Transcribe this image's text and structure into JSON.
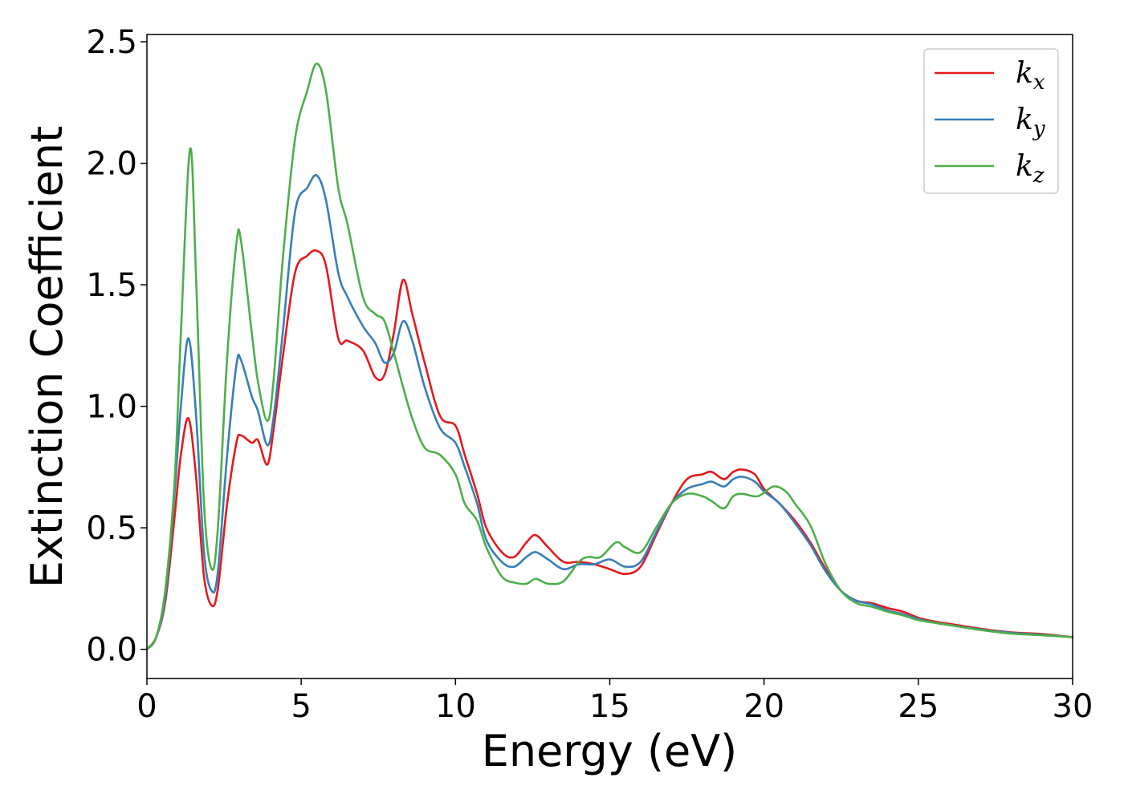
{
  "chart_data": {
    "type": "line",
    "title": "",
    "xlabel": "Energy (eV)",
    "ylabel": "Extinction Coefficient",
    "xlim": [
      0,
      30
    ],
    "ylim": [
      -0.12,
      2.53
    ],
    "xticks": [
      0,
      5,
      10,
      15,
      20,
      25,
      30
    ],
    "xtick_labels": [
      "0",
      "5",
      "10",
      "15",
      "20",
      "25",
      "30"
    ],
    "yticks": [
      0.0,
      0.5,
      1.0,
      1.5,
      2.0,
      2.5
    ],
    "ytick_labels": [
      "0.0",
      "0.5",
      "1.0",
      "1.5",
      "2.0",
      "2.5"
    ],
    "grid": false,
    "legend_position": "top-right",
    "series": [
      {
        "name": "k_x",
        "name_base": "k",
        "name_sub": "x",
        "color": "#e41a1c",
        "points": [
          [
            0,
            0
          ],
          [
            0.3,
            0.05
          ],
          [
            0.6,
            0.2
          ],
          [
            0.9,
            0.55
          ],
          [
            1.1,
            0.8
          ],
          [
            1.35,
            0.95
          ],
          [
            1.6,
            0.7
          ],
          [
            1.85,
            0.3
          ],
          [
            2.1,
            0.18
          ],
          [
            2.3,
            0.25
          ],
          [
            2.6,
            0.6
          ],
          [
            2.9,
            0.85
          ],
          [
            3.05,
            0.88
          ],
          [
            3.4,
            0.85
          ],
          [
            3.6,
            0.86
          ],
          [
            3.9,
            0.76
          ],
          [
            4.1,
            0.9
          ],
          [
            4.4,
            1.2
          ],
          [
            4.8,
            1.55
          ],
          [
            5.2,
            1.62
          ],
          [
            5.5,
            1.64
          ],
          [
            5.8,
            1.58
          ],
          [
            6.2,
            1.28
          ],
          [
            6.5,
            1.27
          ],
          [
            7.0,
            1.23
          ],
          [
            7.4,
            1.12
          ],
          [
            7.7,
            1.13
          ],
          [
            8.0,
            1.3
          ],
          [
            8.3,
            1.52
          ],
          [
            8.6,
            1.38
          ],
          [
            9.0,
            1.18
          ],
          [
            9.5,
            0.96
          ],
          [
            10.0,
            0.92
          ],
          [
            10.3,
            0.8
          ],
          [
            10.7,
            0.64
          ],
          [
            11.0,
            0.5
          ],
          [
            11.5,
            0.4
          ],
          [
            11.9,
            0.38
          ],
          [
            12.3,
            0.44
          ],
          [
            12.6,
            0.47
          ],
          [
            13.0,
            0.42
          ],
          [
            13.5,
            0.36
          ],
          [
            14.0,
            0.36
          ],
          [
            14.5,
            0.35
          ],
          [
            15.0,
            0.33
          ],
          [
            15.5,
            0.31
          ],
          [
            16.0,
            0.34
          ],
          [
            16.5,
            0.47
          ],
          [
            17.0,
            0.6
          ],
          [
            17.5,
            0.7
          ],
          [
            18.0,
            0.72
          ],
          [
            18.3,
            0.73
          ],
          [
            18.7,
            0.7
          ],
          [
            19.0,
            0.73
          ],
          [
            19.3,
            0.74
          ],
          [
            19.7,
            0.72
          ],
          [
            20.0,
            0.66
          ],
          [
            20.5,
            0.6
          ],
          [
            21.0,
            0.53
          ],
          [
            21.5,
            0.44
          ],
          [
            22.0,
            0.33
          ],
          [
            22.5,
            0.24
          ],
          [
            23.0,
            0.2
          ],
          [
            23.5,
            0.19
          ],
          [
            24.0,
            0.17
          ],
          [
            24.5,
            0.155
          ],
          [
            25.0,
            0.13
          ],
          [
            25.5,
            0.115
          ],
          [
            26.0,
            0.105
          ],
          [
            27.0,
            0.085
          ],
          [
            28.0,
            0.07
          ],
          [
            29.0,
            0.063
          ],
          [
            30.0,
            0.05
          ]
        ]
      },
      {
        "name": "k_y",
        "name_base": "k",
        "name_sub": "y",
        "color": "#377eb8",
        "points": [
          [
            0,
            0
          ],
          [
            0.3,
            0.05
          ],
          [
            0.6,
            0.22
          ],
          [
            0.9,
            0.65
          ],
          [
            1.1,
            1.0
          ],
          [
            1.35,
            1.28
          ],
          [
            1.6,
            0.95
          ],
          [
            1.85,
            0.4
          ],
          [
            2.1,
            0.24
          ],
          [
            2.3,
            0.32
          ],
          [
            2.6,
            0.8
          ],
          [
            2.9,
            1.17
          ],
          [
            3.05,
            1.19
          ],
          [
            3.4,
            1.04
          ],
          [
            3.6,
            0.98
          ],
          [
            3.9,
            0.84
          ],
          [
            4.1,
            0.95
          ],
          [
            4.4,
            1.3
          ],
          [
            4.8,
            1.8
          ],
          [
            5.2,
            1.9
          ],
          [
            5.5,
            1.95
          ],
          [
            5.8,
            1.85
          ],
          [
            6.2,
            1.55
          ],
          [
            6.5,
            1.45
          ],
          [
            7.0,
            1.33
          ],
          [
            7.4,
            1.26
          ],
          [
            7.7,
            1.18
          ],
          [
            8.0,
            1.22
          ],
          [
            8.3,
            1.35
          ],
          [
            8.6,
            1.27
          ],
          [
            9.0,
            1.08
          ],
          [
            9.5,
            0.91
          ],
          [
            10.0,
            0.85
          ],
          [
            10.3,
            0.75
          ],
          [
            10.7,
            0.6
          ],
          [
            11.0,
            0.45
          ],
          [
            11.5,
            0.36
          ],
          [
            11.9,
            0.34
          ],
          [
            12.3,
            0.38
          ],
          [
            12.6,
            0.4
          ],
          [
            13.0,
            0.37
          ],
          [
            13.5,
            0.33
          ],
          [
            14.0,
            0.35
          ],
          [
            14.5,
            0.35
          ],
          [
            15.0,
            0.37
          ],
          [
            15.5,
            0.34
          ],
          [
            16.0,
            0.36
          ],
          [
            16.5,
            0.48
          ],
          [
            17.0,
            0.6
          ],
          [
            17.5,
            0.66
          ],
          [
            18.0,
            0.68
          ],
          [
            18.3,
            0.69
          ],
          [
            18.7,
            0.67
          ],
          [
            19.0,
            0.7
          ],
          [
            19.3,
            0.71
          ],
          [
            19.7,
            0.69
          ],
          [
            20.0,
            0.65
          ],
          [
            20.5,
            0.6
          ],
          [
            21.0,
            0.52
          ],
          [
            21.5,
            0.43
          ],
          [
            22.0,
            0.32
          ],
          [
            22.5,
            0.24
          ],
          [
            23.0,
            0.2
          ],
          [
            23.5,
            0.185
          ],
          [
            24.0,
            0.16
          ],
          [
            24.5,
            0.145
          ],
          [
            25.0,
            0.125
          ],
          [
            25.5,
            0.11
          ],
          [
            26.0,
            0.1
          ],
          [
            27.0,
            0.082
          ],
          [
            28.0,
            0.068
          ],
          [
            29.0,
            0.06
          ],
          [
            30.0,
            0.05
          ]
        ]
      },
      {
        "name": "k_z",
        "name_base": "k",
        "name_sub": "z",
        "color": "#4daf4a",
        "points": [
          [
            0,
            0
          ],
          [
            0.3,
            0.05
          ],
          [
            0.6,
            0.25
          ],
          [
            0.9,
            0.7
          ],
          [
            1.1,
            1.3
          ],
          [
            1.4,
            2.06
          ],
          [
            1.6,
            1.5
          ],
          [
            1.85,
            0.6
          ],
          [
            2.1,
            0.33
          ],
          [
            2.3,
            0.5
          ],
          [
            2.6,
            1.2
          ],
          [
            2.9,
            1.67
          ],
          [
            3.05,
            1.68
          ],
          [
            3.4,
            1.3
          ],
          [
            3.6,
            1.1
          ],
          [
            3.9,
            0.94
          ],
          [
            4.1,
            1.1
          ],
          [
            4.4,
            1.6
          ],
          [
            4.8,
            2.1
          ],
          [
            5.2,
            2.3
          ],
          [
            5.5,
            2.41
          ],
          [
            5.8,
            2.3
          ],
          [
            6.2,
            1.9
          ],
          [
            6.5,
            1.75
          ],
          [
            7.0,
            1.45
          ],
          [
            7.4,
            1.38
          ],
          [
            7.7,
            1.35
          ],
          [
            8.0,
            1.22
          ],
          [
            8.3,
            1.08
          ],
          [
            8.6,
            0.95
          ],
          [
            9.0,
            0.83
          ],
          [
            9.5,
            0.8
          ],
          [
            10.0,
            0.72
          ],
          [
            10.3,
            0.6
          ],
          [
            10.7,
            0.53
          ],
          [
            11.0,
            0.42
          ],
          [
            11.5,
            0.3
          ],
          [
            11.9,
            0.275
          ],
          [
            12.3,
            0.27
          ],
          [
            12.6,
            0.29
          ],
          [
            13.0,
            0.27
          ],
          [
            13.5,
            0.28
          ],
          [
            14.0,
            0.36
          ],
          [
            14.3,
            0.38
          ],
          [
            14.7,
            0.38
          ],
          [
            15.2,
            0.44
          ],
          [
            15.5,
            0.42
          ],
          [
            16.0,
            0.4
          ],
          [
            16.5,
            0.5
          ],
          [
            17.0,
            0.6
          ],
          [
            17.5,
            0.64
          ],
          [
            18.0,
            0.63
          ],
          [
            18.3,
            0.61
          ],
          [
            18.7,
            0.58
          ],
          [
            19.0,
            0.63
          ],
          [
            19.3,
            0.64
          ],
          [
            19.8,
            0.63
          ],
          [
            20.3,
            0.67
          ],
          [
            20.7,
            0.65
          ],
          [
            21.0,
            0.6
          ],
          [
            21.5,
            0.51
          ],
          [
            22.0,
            0.35
          ],
          [
            22.5,
            0.24
          ],
          [
            23.0,
            0.19
          ],
          [
            23.5,
            0.175
          ],
          [
            24.0,
            0.155
          ],
          [
            24.5,
            0.14
          ],
          [
            25.0,
            0.12
          ],
          [
            25.5,
            0.11
          ],
          [
            26.0,
            0.1
          ],
          [
            27.0,
            0.08
          ],
          [
            28.0,
            0.065
          ],
          [
            29.0,
            0.058
          ],
          [
            30.0,
            0.05
          ]
        ]
      }
    ]
  }
}
